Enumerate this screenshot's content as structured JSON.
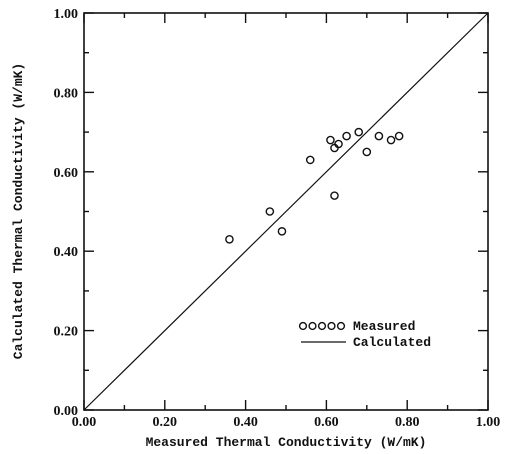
{
  "chart_data": {
    "type": "scatter",
    "xlabel": "Measured Thermal Conductivity (W/mK)",
    "ylabel": "Calculated Thermal Conductivity (W/mK)",
    "xlim": [
      0.0,
      1.0
    ],
    "ylim": [
      0.0,
      1.0
    ],
    "x_ticks": [
      "0.00",
      "0.20",
      "0.40",
      "0.60",
      "0.80",
      "1.00"
    ],
    "y_ticks": [
      "0.00",
      "0.20",
      "0.40",
      "0.60",
      "0.80",
      "1.00"
    ],
    "grid": false,
    "legend_position": "bottom-right",
    "series": [
      {
        "name": "Measured",
        "kind": "markers",
        "marker": "open-circle",
        "legend_marker_text": "ooooo",
        "points": [
          {
            "x": 0.36,
            "y": 0.43
          },
          {
            "x": 0.46,
            "y": 0.5
          },
          {
            "x": 0.49,
            "y": 0.45
          },
          {
            "x": 0.56,
            "y": 0.63
          },
          {
            "x": 0.61,
            "y": 0.68
          },
          {
            "x": 0.62,
            "y": 0.66
          },
          {
            "x": 0.63,
            "y": 0.67
          },
          {
            "x": 0.65,
            "y": 0.69
          },
          {
            "x": 0.68,
            "y": 0.7
          },
          {
            "x": 0.7,
            "y": 0.65
          },
          {
            "x": 0.73,
            "y": 0.69
          },
          {
            "x": 0.76,
            "y": 0.68
          },
          {
            "x": 0.78,
            "y": 0.69
          },
          {
            "x": 0.62,
            "y": 0.54
          }
        ]
      },
      {
        "name": "Calculated",
        "kind": "line",
        "points": [
          {
            "x": 0.0,
            "y": 0.0
          },
          {
            "x": 1.0,
            "y": 1.0
          }
        ]
      }
    ]
  }
}
